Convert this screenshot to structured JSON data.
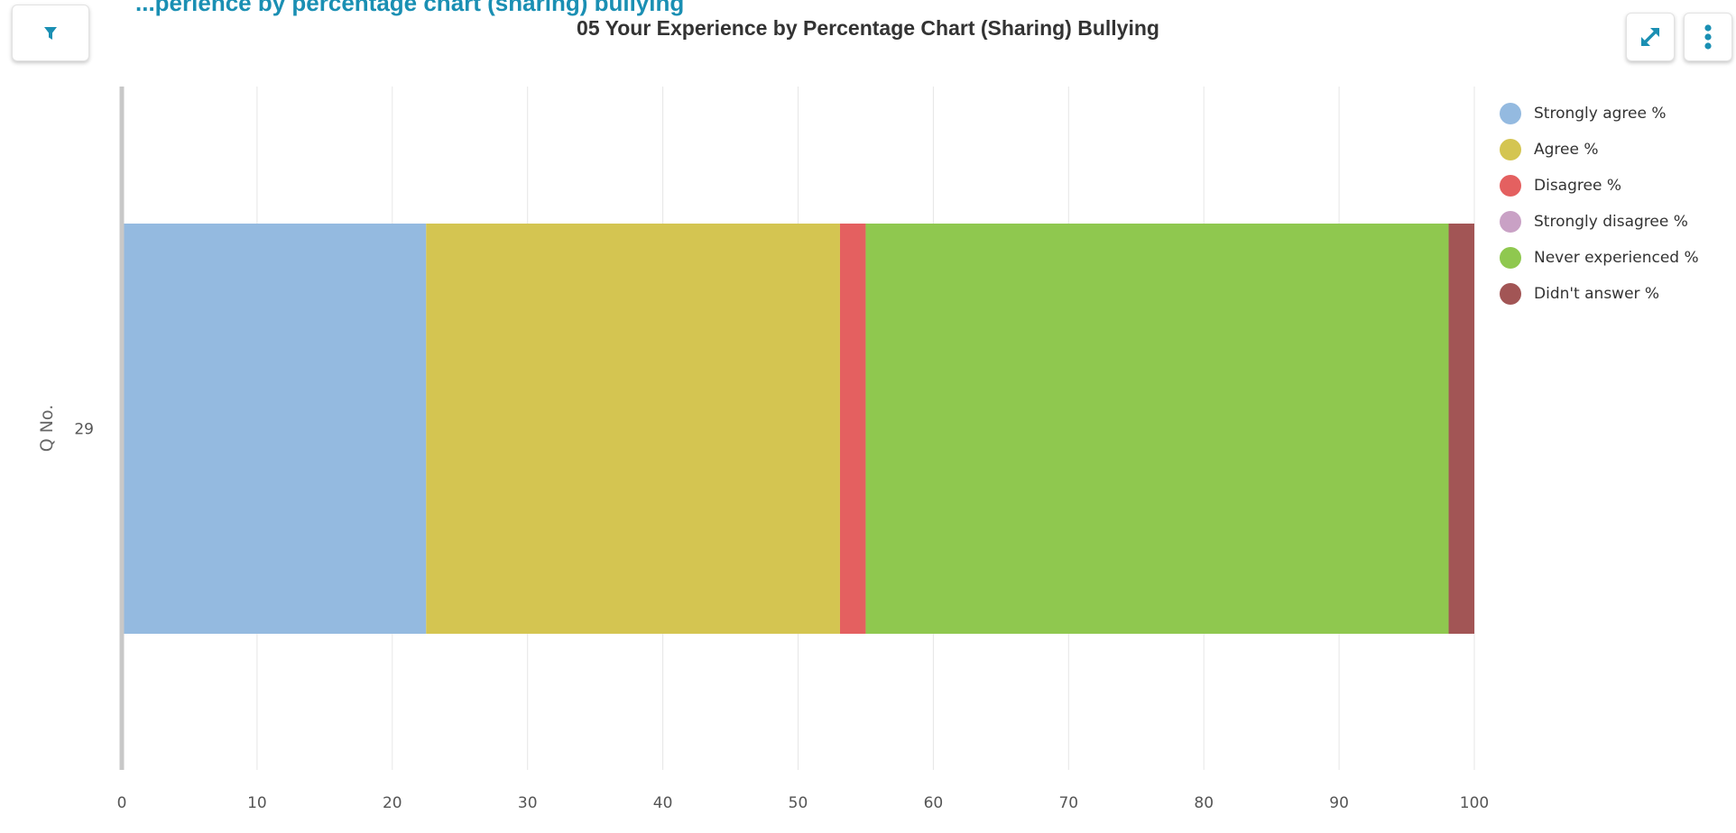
{
  "page": {
    "clipped_header": "...perience by percentage chart (sharing) bullying"
  },
  "toolbar": {
    "filter_icon": "filter-icon",
    "expand_icon": "expand-icon",
    "menu_icon": "more-vertical-icon",
    "accent_color": "#1a8fb3"
  },
  "chart_data": {
    "type": "bar",
    "orientation": "horizontal",
    "stacked": true,
    "title": "05 Your Experience by Percentage Chart (Sharing) Bullying",
    "ylabel": "Q No.",
    "xlabel": "",
    "categories": [
      "29"
    ],
    "xlim": [
      0,
      100
    ],
    "xticks": [
      "0",
      "10",
      "20",
      "30",
      "40",
      "50",
      "60",
      "70",
      "80",
      "90",
      "100"
    ],
    "grid": "vertical",
    "legend_position": "right",
    "series": [
      {
        "name": "Strongly agree %",
        "values": [
          22.5
        ],
        "color": "#94bae0"
      },
      {
        "name": "Agree %",
        "values": [
          30.6
        ],
        "color": "#d4c551"
      },
      {
        "name": "Disagree %",
        "values": [
          1.9
        ],
        "color": "#e46060"
      },
      {
        "name": "Strongly disagree %",
        "values": [
          0
        ],
        "color": "#c9a1c5"
      },
      {
        "name": "Never experienced %",
        "values": [
          43.1
        ],
        "color": "#8fc84f"
      },
      {
        "name": "Didn't answer %",
        "values": [
          1.9
        ],
        "color": "#a25555"
      }
    ]
  }
}
